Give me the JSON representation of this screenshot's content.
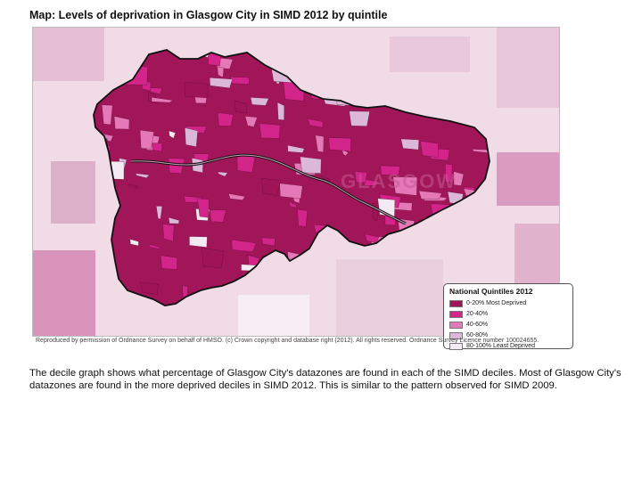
{
  "title": "Map: Levels of deprivation in Glasgow City  in SIMD 2012 by quintile",
  "map": {
    "region": "Glasgow City",
    "place_labels": [
      "GLASGOW"
    ],
    "colors": {
      "background": "#f1dbe6",
      "boundary": "#111111",
      "river": "#111111"
    }
  },
  "legend": {
    "title": "National Quintiles 2012",
    "items": [
      {
        "label": "0-20% Most Deprived",
        "color": "#9e1456"
      },
      {
        "label": "20-40%",
        "color": "#d3248a"
      },
      {
        "label": "40-60%",
        "color": "#e579b7"
      },
      {
        "label": "60-80%",
        "color": "#dbb8d8"
      },
      {
        "label": "80-100% Least Deprived",
        "color": "#f3eaf3"
      }
    ]
  },
  "credit": "Reproduced by permission of Ordnance Survey on behalf of HMSO. (c) Crown copyright and database right (2012). All rights reserved. Ordnance Survey Licence number 100024655.",
  "body_text": "The decile graph shows what percentage of Glasgow City's datazones are found in each of the SIMD deciles. Most of Glasgow City's datazones are found in the more deprived deciles in SIMD 2012. This is similar to the pattern observed for SIMD 2009."
}
